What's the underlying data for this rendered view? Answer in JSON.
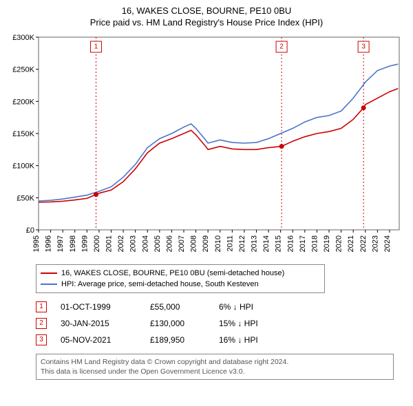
{
  "title_line1": "16, WAKES CLOSE, BOURNE, PE10 0BU",
  "title_line2": "Price paid vs. HM Land Registry's House Price Index (HPI)",
  "chart": {
    "type": "line",
    "background_color": "#ffffff",
    "plot_border_color": "#666666",
    "grid": false,
    "x_axis": {
      "min": 1995,
      "max": 2024.8,
      "ticks": [
        1995,
        1996,
        1997,
        1998,
        1999,
        2000,
        2001,
        2002,
        2003,
        2004,
        2005,
        2006,
        2007,
        2008,
        2009,
        2010,
        2011,
        2012,
        2013,
        2014,
        2015,
        2016,
        2017,
        2018,
        2019,
        2020,
        2021,
        2022,
        2023,
        2024
      ],
      "tick_rotation_deg": 90,
      "label_fontsize": 11
    },
    "y_axis": {
      "min": 0,
      "max": 300000,
      "ticks": [
        0,
        50000,
        100000,
        150000,
        200000,
        250000,
        300000
      ],
      "tick_labels": [
        "£0",
        "£50K",
        "£100K",
        "£150K",
        "£200K",
        "£250K",
        "£300K"
      ],
      "label_fontsize": 11
    },
    "series": [
      {
        "name": "property",
        "color": "#cc0000",
        "line_width": 1.6,
        "data": [
          [
            1995,
            43000
          ],
          [
            1996,
            43500
          ],
          [
            1997,
            44500
          ],
          [
            1998,
            46500
          ],
          [
            1999,
            49000
          ],
          [
            1999.75,
            55000
          ],
          [
            2000,
            57000
          ],
          [
            2001,
            62000
          ],
          [
            2002,
            75000
          ],
          [
            2003,
            95000
          ],
          [
            2004,
            120000
          ],
          [
            2005,
            135000
          ],
          [
            2006,
            142000
          ],
          [
            2007,
            150000
          ],
          [
            2007.6,
            155000
          ],
          [
            2008,
            148000
          ],
          [
            2008.8,
            130000
          ],
          [
            2009,
            125000
          ],
          [
            2010,
            130000
          ],
          [
            2011,
            126000
          ],
          [
            2012,
            125000
          ],
          [
            2013,
            125000
          ],
          [
            2014,
            128000
          ],
          [
            2015.08,
            130000
          ],
          [
            2016,
            138000
          ],
          [
            2017,
            145000
          ],
          [
            2018,
            150000
          ],
          [
            2019,
            153000
          ],
          [
            2020,
            158000
          ],
          [
            2021,
            172000
          ],
          [
            2021.85,
            189950
          ],
          [
            2022,
            195000
          ],
          [
            2023,
            205000
          ],
          [
            2024,
            215000
          ],
          [
            2024.7,
            220000
          ]
        ]
      },
      {
        "name": "hpi",
        "color": "#4a74c9",
        "line_width": 1.6,
        "data": [
          [
            1995,
            45000
          ],
          [
            1996,
            46000
          ],
          [
            1997,
            48000
          ],
          [
            1998,
            51000
          ],
          [
            1999,
            54000
          ],
          [
            2000,
            60000
          ],
          [
            2001,
            67000
          ],
          [
            2002,
            82000
          ],
          [
            2003,
            102000
          ],
          [
            2004,
            128000
          ],
          [
            2005,
            142000
          ],
          [
            2006,
            150000
          ],
          [
            2007,
            160000
          ],
          [
            2007.6,
            165000
          ],
          [
            2008,
            158000
          ],
          [
            2008.8,
            140000
          ],
          [
            2009,
            135000
          ],
          [
            2010,
            140000
          ],
          [
            2011,
            136000
          ],
          [
            2012,
            135000
          ],
          [
            2013,
            136000
          ],
          [
            2014,
            142000
          ],
          [
            2015,
            150000
          ],
          [
            2016,
            158000
          ],
          [
            2017,
            168000
          ],
          [
            2018,
            175000
          ],
          [
            2019,
            178000
          ],
          [
            2020,
            185000
          ],
          [
            2021,
            205000
          ],
          [
            2022,
            230000
          ],
          [
            2023,
            248000
          ],
          [
            2024,
            255000
          ],
          [
            2024.7,
            258000
          ]
        ]
      }
    ],
    "sale_markers": [
      {
        "n": "1",
        "year": 1999.75,
        "price": 55000,
        "color": "#cc0000"
      },
      {
        "n": "2",
        "year": 2015.08,
        "price": 130000,
        "color": "#cc0000"
      },
      {
        "n": "3",
        "year": 2021.85,
        "price": 189950,
        "color": "#cc0000"
      }
    ],
    "marker_vline": {
      "color": "#cc0000",
      "dash": "2,3",
      "width": 1
    },
    "sale_point": {
      "fill": "#cc0000",
      "radius": 3.5
    }
  },
  "legend": {
    "items": [
      {
        "color": "#cc0000",
        "label": "16, WAKES CLOSE, BOURNE, PE10 0BU (semi-detached house)"
      },
      {
        "color": "#4a74c9",
        "label": "HPI: Average price, semi-detached house, South Kesteven"
      }
    ]
  },
  "sales": [
    {
      "n": "1",
      "color": "#cc0000",
      "date": "01-OCT-1999",
      "price": "£55,000",
      "pct": "6% ↓ HPI"
    },
    {
      "n": "2",
      "color": "#cc0000",
      "date": "30-JAN-2015",
      "price": "£130,000",
      "pct": "15% ↓ HPI"
    },
    {
      "n": "3",
      "color": "#cc0000",
      "date": "05-NOV-2021",
      "price": "£189,950",
      "pct": "16% ↓ HPI"
    }
  ],
  "footer_line1": "Contains HM Land Registry data © Crown copyright and database right 2024.",
  "footer_line2": "This data is licensed under the Open Government Licence v3.0."
}
